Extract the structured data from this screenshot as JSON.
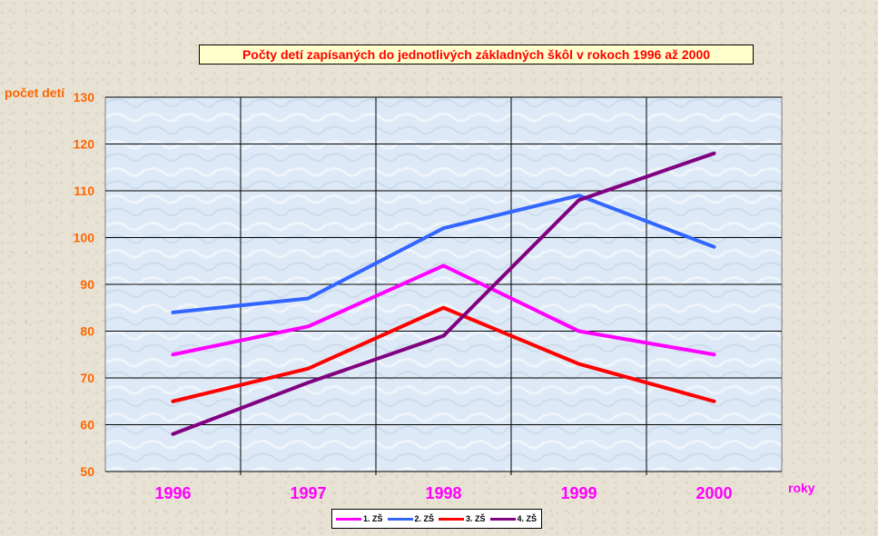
{
  "chart_data": {
    "type": "line",
    "title": "Počty detí zapísaných do jednotlivých základných škôl v rokoch 1996 až 2000",
    "ylabel": "počet detí",
    "xlabel": "roky",
    "categories": [
      "1996",
      "1997",
      "1998",
      "1999",
      "2000"
    ],
    "ylim": [
      50,
      130
    ],
    "yticks": [
      50,
      60,
      70,
      80,
      90,
      100,
      110,
      120,
      130
    ],
    "grid": true,
    "legend_position": "bottom",
    "series": [
      {
        "name": "1. ZŠ",
        "color": "#ff00ff",
        "values": [
          75,
          81,
          94,
          80,
          75
        ]
      },
      {
        "name": "2. ZŠ",
        "color": "#3366ff",
        "values": [
          84,
          87,
          102,
          109,
          98
        ]
      },
      {
        "name": "3. ZŠ",
        "color": "#ff0000",
        "values": [
          65,
          72,
          85,
          73,
          65
        ]
      },
      {
        "name": "4. ZŠ",
        "color": "#800080",
        "values": [
          58,
          69,
          79,
          108,
          118
        ]
      }
    ],
    "colors": {
      "title": "#ff0000",
      "title_bg": "#ffffcc",
      "ytick": "#ff6600",
      "xtick": "#ff00ff",
      "plot_bg": "#dde9f6"
    }
  }
}
